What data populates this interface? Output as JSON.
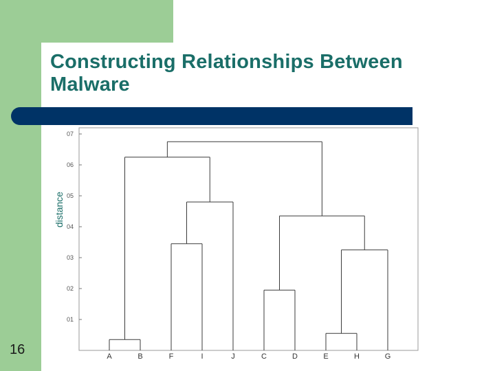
{
  "slide": {
    "title": "Constructing Relationships Between Malware",
    "number": "16"
  },
  "colors": {
    "accent_green": "#9ccd96",
    "band_blue": "#003366",
    "title_teal": "#1a6e68"
  },
  "chart_data": {
    "type": "dendrogram",
    "ylabel": "distance",
    "ylim": [
      0,
      0.72
    ],
    "y_ticks": [
      "07",
      "06",
      "05",
      "04",
      "03",
      "02",
      "01"
    ],
    "y_tick_values": [
      0.7,
      0.6,
      0.5,
      0.4,
      0.3,
      0.2,
      0.1
    ],
    "leaves": [
      "A",
      "B",
      "F",
      "I",
      "J",
      "C",
      "D",
      "E",
      "H",
      "G"
    ],
    "merges": [
      {
        "left": "A",
        "right": "B",
        "height": 0.035
      },
      {
        "left": "E",
        "right": "H",
        "height": 0.055
      },
      {
        "left": "C",
        "right": "D",
        "height": 0.195
      },
      {
        "left": "EH",
        "right": "G",
        "height": 0.325
      },
      {
        "left": "F",
        "right": "I",
        "height": 0.345
      },
      {
        "left": "CD",
        "right": "EHG",
        "height": 0.435
      },
      {
        "left": "FI",
        "right": "J",
        "height": 0.48
      },
      {
        "left": "AB",
        "right": "FIJ",
        "height": 0.625
      },
      {
        "left": "ABFIJ",
        "right": "CDEHG",
        "height": 0.675
      }
    ]
  }
}
